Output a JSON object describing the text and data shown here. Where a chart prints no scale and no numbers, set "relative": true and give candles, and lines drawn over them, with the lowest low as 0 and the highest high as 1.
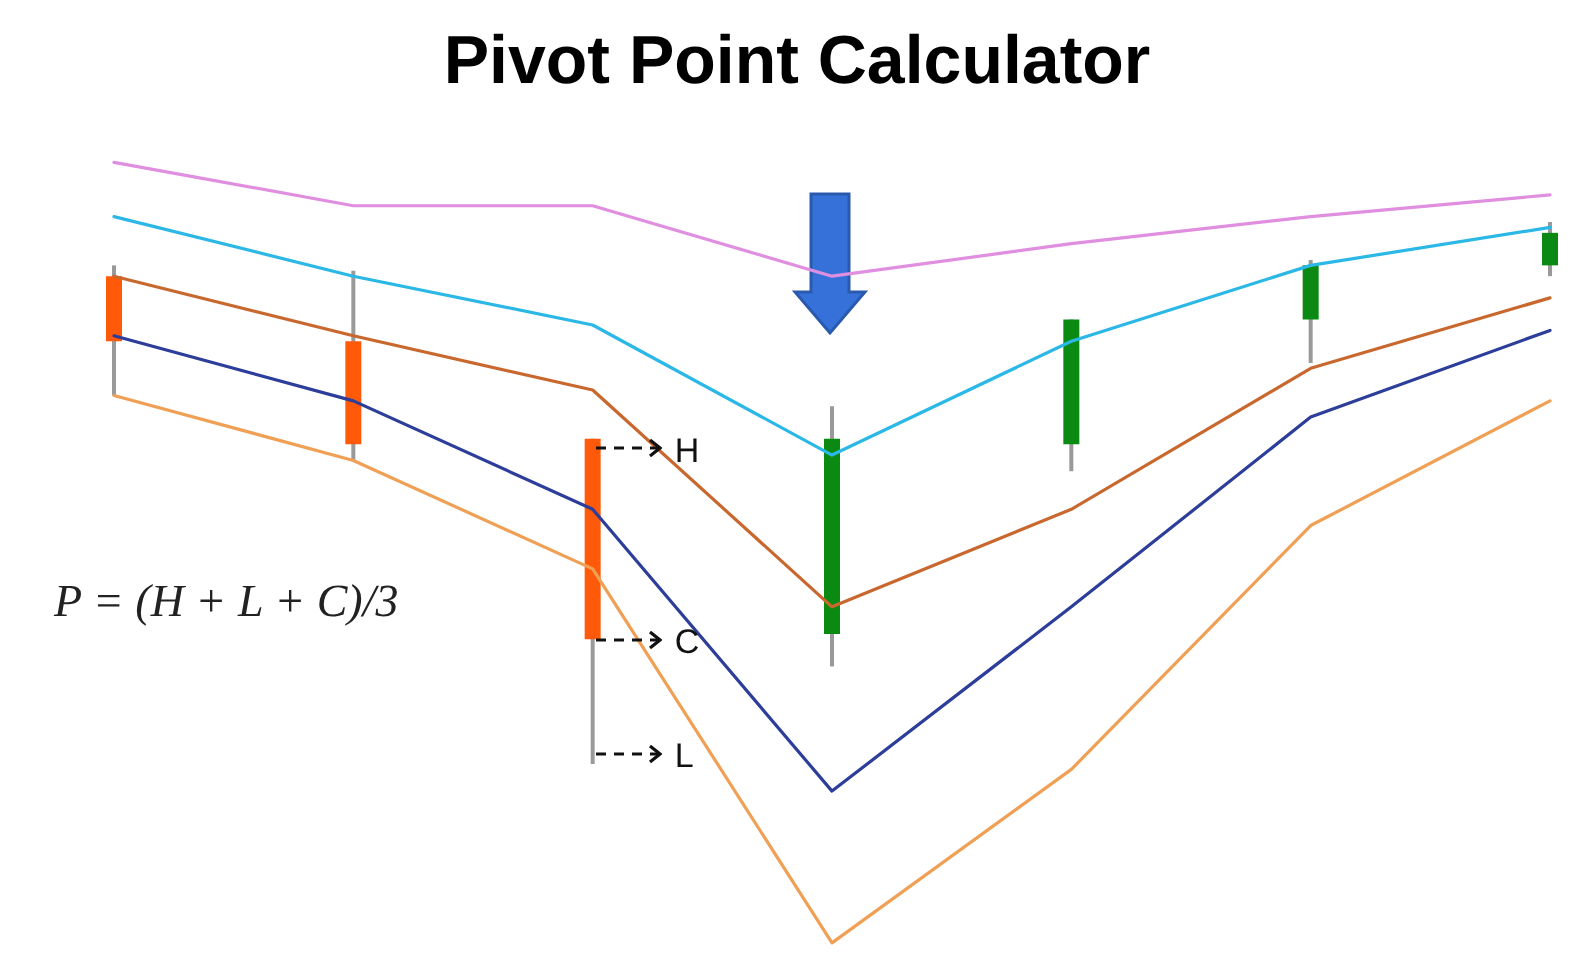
{
  "chart_data": {
    "type": "candlestick",
    "title": "Pivot Point Calculator",
    "relative": true,
    "categories": [
      null,
      null,
      null,
      null,
      null,
      null,
      null
    ],
    "ohlc": [
      [
        0.9,
        0.92,
        0.68,
        0.78
      ],
      [
        0.78,
        0.91,
        0.56,
        0.59
      ],
      [
        0.6,
        0.6,
        0.0,
        0.23
      ],
      [
        0.24,
        0.66,
        0.18,
        0.6
      ],
      [
        0.59,
        0.82,
        0.54,
        0.82
      ],
      [
        0.82,
        0.93,
        0.74,
        0.92
      ],
      [
        0.92,
        1.0,
        0.9,
        0.98
      ]
    ],
    "colors": [
      "#ff5a0a",
      "#ff5a0a",
      "#ff5a0a",
      "#0a8a12",
      "#0a8a12",
      "#0a8a12",
      "#0a8a12"
    ],
    "series": [
      {
        "type": "line",
        "color": "#e08ee0",
        "values": [
          1.11,
          1.03,
          1.03,
          0.9,
          0.96,
          1.01,
          1.05
        ]
      },
      {
        "type": "line",
        "color": "#2bb8e6",
        "values": [
          1.01,
          0.9,
          0.81,
          0.57,
          0.78,
          0.92,
          0.99
        ]
      },
      {
        "type": "line",
        "color": "#c9682e",
        "values": [
          0.9,
          0.79,
          0.69,
          0.29,
          0.47,
          0.73,
          0.86
        ]
      },
      {
        "type": "line",
        "color": "#2d3d9a",
        "values": [
          0.79,
          0.67,
          0.47,
          -0.05,
          0.29,
          0.64,
          0.8
        ]
      },
      {
        "type": "line",
        "color": "#f0a055",
        "values": [
          0.68,
          0.56,
          0.36,
          -0.33,
          -0.01,
          0.44,
          0.67
        ]
      }
    ],
    "annotations": [
      "P = (H + L + C)/3",
      "H",
      "C",
      "L"
    ]
  }
}
